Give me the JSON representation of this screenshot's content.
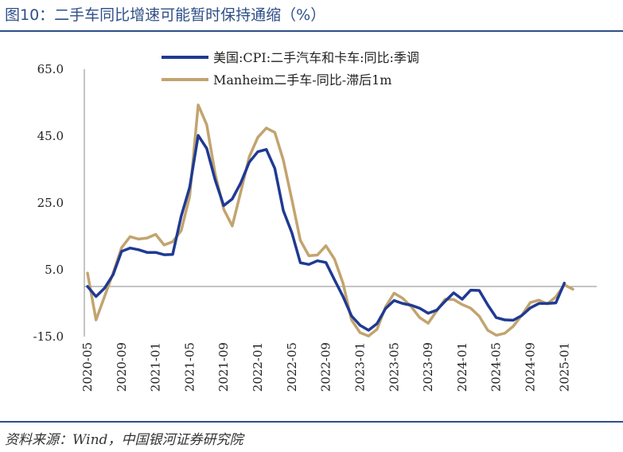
{
  "figure": {
    "title": "图10：二手车同比增速可能暂时保持通缩（%）",
    "source": "资料来源：Wind，中国银河证券研究院"
  },
  "colors": {
    "series1": "#1f3a93",
    "series2": "#c2a46f",
    "axis": "#888888"
  },
  "chart_data": {
    "type": "line",
    "title": "",
    "xlabel": "",
    "ylabel": "",
    "ylim": [
      -15,
      65
    ],
    "yticks": [
      -15.0,
      5.0,
      25.0,
      45.0,
      65.0
    ],
    "ytick_labels": [
      "-15.0",
      "5.0",
      "25.0",
      "45.0",
      "65.0"
    ],
    "xtick_labels": [
      "2020-05",
      "2020-09",
      "2021-01",
      "2021-05",
      "2021-09",
      "2022-01",
      "2022-05",
      "2022-09",
      "2023-01",
      "2023-05",
      "2023-09",
      "2024-01",
      "2024-05",
      "2024-09",
      "2025-01"
    ],
    "legend_position": "top",
    "grid": false,
    "x": [
      "2020-05",
      "2020-06",
      "2020-07",
      "2020-08",
      "2020-09",
      "2020-10",
      "2020-11",
      "2020-12",
      "2021-01",
      "2021-02",
      "2021-03",
      "2021-04",
      "2021-05",
      "2021-06",
      "2021-07",
      "2021-08",
      "2021-09",
      "2021-10",
      "2021-11",
      "2021-12",
      "2022-01",
      "2022-02",
      "2022-03",
      "2022-04",
      "2022-05",
      "2022-06",
      "2022-07",
      "2022-08",
      "2022-09",
      "2022-10",
      "2022-11",
      "2022-12",
      "2023-01",
      "2023-02",
      "2023-03",
      "2023-04",
      "2023-05",
      "2023-06",
      "2023-07",
      "2023-08",
      "2023-09",
      "2023-10",
      "2023-11",
      "2023-12",
      "2024-01",
      "2024-02",
      "2024-03",
      "2024-04",
      "2024-05",
      "2024-06",
      "2024-07",
      "2024-08",
      "2024-09",
      "2024-10",
      "2024-11",
      "2024-12",
      "2025-01",
      "2025-02"
    ],
    "series": [
      {
        "name": "美国:CPI:二手汽车和卡车:同比:季调",
        "values": [
          0.0,
          -3.0,
          -0.5,
          3.5,
          10.5,
          11.5,
          11.0,
          10.2,
          10.2,
          9.5,
          9.6,
          21.0,
          29.7,
          45.2,
          41.3,
          31.8,
          24.2,
          26.2,
          31.0,
          37.2,
          40.3,
          41.0,
          35.3,
          22.7,
          16.1,
          7.1,
          6.6,
          7.7,
          7.2,
          2.0,
          -3.0,
          -8.8,
          -11.6,
          -13.1,
          -11.1,
          -6.6,
          -4.2,
          -5.1,
          -5.6,
          -6.5,
          -8.0,
          -7.1,
          -4.4,
          -1.9,
          -3.8,
          -1.1,
          -1.2,
          -5.5,
          -9.3,
          -10.0,
          -10.1,
          -8.7,
          -6.4,
          -5.1,
          -5.1,
          -4.9,
          1.0,
          null
        ]
      },
      {
        "name": "Manheim二手车-同比-滞后1m",
        "values": [
          4.0,
          -10.0,
          -3.0,
          4.0,
          11.6,
          14.9,
          14.2,
          14.5,
          15.6,
          12.4,
          13.4,
          16.7,
          27.0,
          54.3,
          48.4,
          33.6,
          23.1,
          18.1,
          28.3,
          38.8,
          44.6,
          47.4,
          46.1,
          37.8,
          26.0,
          13.8,
          9.2,
          9.4,
          12.2,
          8.2,
          1.0,
          -10.0,
          -13.8,
          -14.8,
          -12.8,
          -6.1,
          -2.0,
          -3.5,
          -6.0,
          -9.3,
          -11.0,
          -7.3,
          -3.8,
          -3.9,
          -5.4,
          -6.5,
          -8.9,
          -13.1,
          -14.6,
          -14.0,
          -11.9,
          -8.6,
          -4.8,
          -4.1,
          -5.2,
          -3.1,
          0.5,
          -0.8
        ]
      }
    ]
  }
}
